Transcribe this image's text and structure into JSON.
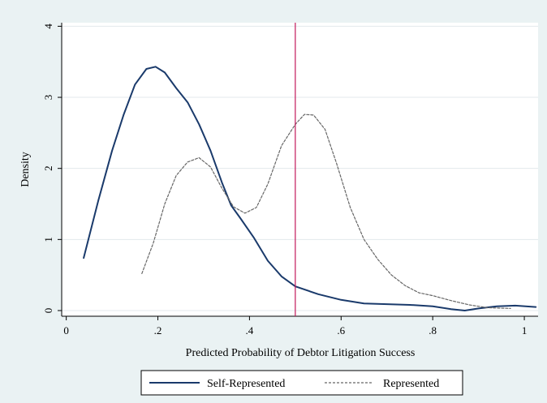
{
  "chart_data": {
    "type": "line",
    "title": "",
    "xlabel": "Predicted Probability of Debtor Litigation Success",
    "ylabel": "Density",
    "xlim": [
      -0.01,
      1.03
    ],
    "ylim": [
      -0.08,
      4.05
    ],
    "x_ticks": [
      0,
      0.2,
      0.4,
      0.6,
      0.8,
      1
    ],
    "x_tick_labels": [
      "0",
      ".2",
      ".4",
      ".6",
      ".8",
      "1"
    ],
    "y_ticks": [
      0,
      1,
      2,
      3,
      4
    ],
    "y_tick_labels": [
      "0",
      "1",
      "2",
      "3",
      "4"
    ],
    "grid": "horizontal",
    "legend_position": "bottom",
    "reference_line": {
      "x": 0.5,
      "color": "#c2185b"
    },
    "series": [
      {
        "name": "Self-Represented",
        "style": "solid",
        "color": "#1a3a6b",
        "points": [
          [
            0.038,
            0.74
          ],
          [
            0.07,
            1.55
          ],
          [
            0.1,
            2.25
          ],
          [
            0.125,
            2.75
          ],
          [
            0.15,
            3.18
          ],
          [
            0.175,
            3.4
          ],
          [
            0.195,
            3.43
          ],
          [
            0.215,
            3.35
          ],
          [
            0.24,
            3.13
          ],
          [
            0.265,
            2.93
          ],
          [
            0.29,
            2.62
          ],
          [
            0.315,
            2.25
          ],
          [
            0.34,
            1.8
          ],
          [
            0.36,
            1.48
          ],
          [
            0.38,
            1.3
          ],
          [
            0.41,
            1.02
          ],
          [
            0.44,
            0.7
          ],
          [
            0.47,
            0.48
          ],
          [
            0.5,
            0.34
          ],
          [
            0.55,
            0.23
          ],
          [
            0.6,
            0.15
          ],
          [
            0.65,
            0.1
          ],
          [
            0.7,
            0.09
          ],
          [
            0.75,
            0.08
          ],
          [
            0.8,
            0.06
          ],
          [
            0.84,
            0.02
          ],
          [
            0.87,
            0.0
          ],
          [
            0.9,
            0.03
          ],
          [
            0.94,
            0.06
          ],
          [
            0.98,
            0.07
          ],
          [
            1.025,
            0.05
          ]
        ]
      },
      {
        "name": "Represented",
        "style": "dashed",
        "color": "#666666",
        "points": [
          [
            0.165,
            0.52
          ],
          [
            0.19,
            0.95
          ],
          [
            0.215,
            1.5
          ],
          [
            0.24,
            1.9
          ],
          [
            0.265,
            2.09
          ],
          [
            0.29,
            2.15
          ],
          [
            0.315,
            2.02
          ],
          [
            0.34,
            1.72
          ],
          [
            0.365,
            1.46
          ],
          [
            0.39,
            1.37
          ],
          [
            0.415,
            1.45
          ],
          [
            0.44,
            1.78
          ],
          [
            0.47,
            2.32
          ],
          [
            0.5,
            2.62
          ],
          [
            0.52,
            2.76
          ],
          [
            0.54,
            2.75
          ],
          [
            0.565,
            2.55
          ],
          [
            0.59,
            2.07
          ],
          [
            0.62,
            1.45
          ],
          [
            0.65,
            1.0
          ],
          [
            0.68,
            0.72
          ],
          [
            0.71,
            0.5
          ],
          [
            0.74,
            0.35
          ],
          [
            0.77,
            0.25
          ],
          [
            0.8,
            0.21
          ],
          [
            0.84,
            0.14
          ],
          [
            0.88,
            0.08
          ],
          [
            0.92,
            0.04
          ],
          [
            0.97,
            0.03
          ]
        ]
      }
    ]
  }
}
